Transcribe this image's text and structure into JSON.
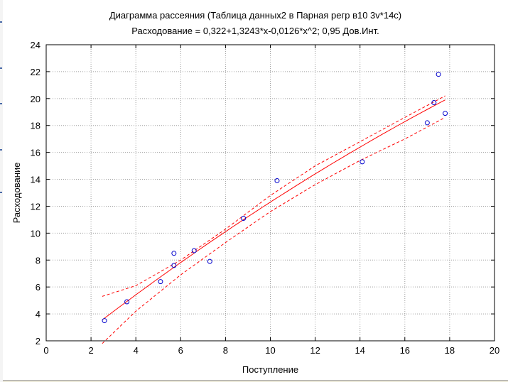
{
  "chart_data": {
    "type": "scatter",
    "title": "Диаграмма рассеяния (Таблица данных2 в Парная регр в10 3v*14c)",
    "subtitle": "Расходование = 0,322+1,3243*x-0,0126*x^2; 0,95 Дов.Инт.",
    "xlabel": "Поступление",
    "ylabel": "Расходование",
    "xlim": [
      0,
      20
    ],
    "ylim": [
      2,
      24
    ],
    "xticks": [
      0,
      2,
      4,
      6,
      8,
      10,
      12,
      14,
      16,
      18,
      20
    ],
    "yticks": [
      2,
      4,
      6,
      8,
      10,
      12,
      14,
      16,
      18,
      20,
      22,
      24
    ],
    "xtick_labels": [
      "0",
      "2",
      "4",
      "6",
      "8",
      "10",
      "12",
      "14",
      "16",
      "18",
      "20"
    ],
    "ytick_labels": [
      "2",
      "4",
      "6",
      "8",
      "10",
      "12",
      "14",
      "16",
      "18",
      "20",
      "22",
      "24"
    ],
    "grid": true,
    "points": [
      {
        "x": 2.6,
        "y": 3.5
      },
      {
        "x": 3.6,
        "y": 4.9
      },
      {
        "x": 5.1,
        "y": 6.4
      },
      {
        "x": 5.7,
        "y": 8.5
      },
      {
        "x": 5.7,
        "y": 7.6
      },
      {
        "x": 6.6,
        "y": 8.7
      },
      {
        "x": 7.3,
        "y": 7.9
      },
      {
        "x": 8.8,
        "y": 11.1
      },
      {
        "x": 10.3,
        "y": 13.9
      },
      {
        "x": 14.1,
        "y": 15.3
      },
      {
        "x": 17.0,
        "y": 18.2
      },
      {
        "x": 17.3,
        "y": 19.7
      },
      {
        "x": 17.5,
        "y": 21.8
      },
      {
        "x": 17.8,
        "y": 18.9
      }
    ],
    "fit": {
      "intercept": 0.322,
      "b1": 1.3243,
      "b2": -0.0126,
      "x_range": [
        2.5,
        17.8
      ]
    },
    "confidence": {
      "level": 0.95,
      "upper": [
        [
          2.5,
          5.3
        ],
        [
          4.0,
          6.1
        ],
        [
          6.0,
          8.0
        ],
        [
          8.0,
          10.3
        ],
        [
          10.0,
          12.8
        ],
        [
          12.0,
          15.0
        ],
        [
          14.0,
          16.8
        ],
        [
          16.0,
          18.6
        ],
        [
          17.8,
          20.2
        ]
      ],
      "lower": [
        [
          2.5,
          1.8
        ],
        [
          4.0,
          4.2
        ],
        [
          6.0,
          6.9
        ],
        [
          8.0,
          9.3
        ],
        [
          10.0,
          11.6
        ],
        [
          12.0,
          13.6
        ],
        [
          14.0,
          15.4
        ],
        [
          16.0,
          17.0
        ],
        [
          17.8,
          18.6
        ]
      ]
    },
    "colors": {
      "points": "#0000cc",
      "fit": "#ff0000",
      "ci": "#ff0000",
      "grid": "#a0a0a0",
      "axes": "#000000"
    }
  }
}
